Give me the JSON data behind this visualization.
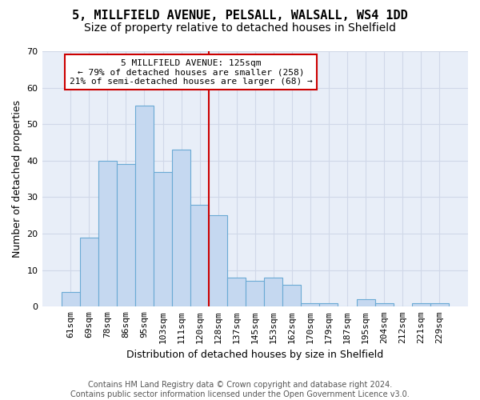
{
  "title": "5, MILLFIELD AVENUE, PELSALL, WALSALL, WS4 1DD",
  "subtitle": "Size of property relative to detached houses in Shelfield",
  "xlabel": "Distribution of detached houses by size in Shelfield",
  "ylabel": "Number of detached properties",
  "categories": [
    "61sqm",
    "69sqm",
    "78sqm",
    "86sqm",
    "95sqm",
    "103sqm",
    "111sqm",
    "120sqm",
    "128sqm",
    "137sqm",
    "145sqm",
    "153sqm",
    "162sqm",
    "170sqm",
    "179sqm",
    "187sqm",
    "195sqm",
    "204sqm",
    "212sqm",
    "221sqm",
    "229sqm"
  ],
  "values": [
    4,
    19,
    40,
    39,
    55,
    37,
    43,
    28,
    25,
    8,
    7,
    8,
    6,
    1,
    1,
    0,
    2,
    1,
    0,
    1,
    1
  ],
  "bar_color": "#c5d8f0",
  "bar_edge_color": "#6aaad4",
  "vline_x": 7.5,
  "vline_color": "#cc0000",
  "annotation_text": "5 MILLFIELD AVENUE: 125sqm\n← 79% of detached houses are smaller (258)\n21% of semi-detached houses are larger (68) →",
  "annotation_box_color": "#ffffff",
  "annotation_box_edge": "#cc0000",
  "ylim": [
    0,
    70
  ],
  "yticks": [
    0,
    10,
    20,
    30,
    40,
    50,
    60,
    70
  ],
  "grid_color": "#d0d8e8",
  "bg_color": "#e8eef8",
  "footer": "Contains HM Land Registry data © Crown copyright and database right 2024.\nContains public sector information licensed under the Open Government Licence v3.0.",
  "title_fontsize": 11,
  "subtitle_fontsize": 10,
  "xlabel_fontsize": 9,
  "ylabel_fontsize": 9,
  "tick_fontsize": 8,
  "annotation_fontsize": 8,
  "footer_fontsize": 7
}
